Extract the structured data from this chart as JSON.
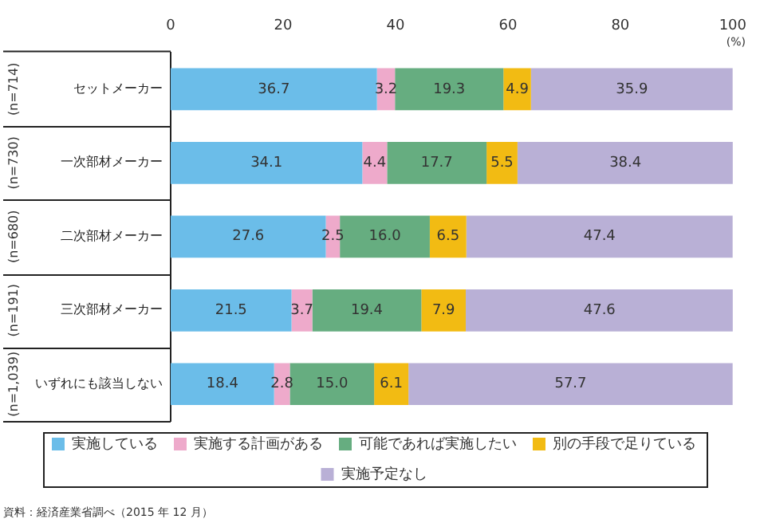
{
  "chart_data": {
    "type": "bar",
    "orientation": "horizontal",
    "stacked": true,
    "grid": false,
    "legend": "bottom",
    "xlabel": "(%)",
    "categories": [
      "セットメーカー",
      "一次部材メーカー",
      "二次部材メーカー",
      "三次部材メーカー",
      "いずれにも該当しない"
    ],
    "xlim": [
      0,
      100
    ],
    "xticks": [
      0,
      20,
      40,
      60,
      80,
      100
    ],
    "series": [
      {
        "name": "実施している",
        "color": "#6bbde9",
        "values": [
          36.7,
          34.1,
          27.6,
          21.5,
          18.4
        ],
        "value_labels": [
          "36.7",
          "34.1",
          "27.6",
          "21.5",
          "18.4"
        ]
      },
      {
        "name": "実施する計画がある",
        "color": "#eeaacb",
        "values": [
          3.2,
          4.4,
          2.5,
          3.7,
          2.8
        ],
        "value_labels": [
          "3.2",
          "4.4",
          "2.5",
          "3.7",
          "2.8"
        ]
      },
      {
        "name": "可能であれば実施したい",
        "color": "#66ad80",
        "values": [
          19.3,
          17.7,
          16.0,
          19.4,
          15.0
        ],
        "value_labels": [
          "19.3",
          "17.7",
          "16.0",
          "19.4",
          "15.0"
        ]
      },
      {
        "name": "別の手段で足りている",
        "color": "#f2bb13",
        "values": [
          4.9,
          5.5,
          6.5,
          7.9,
          6.1
        ],
        "value_labels": [
          "4.9",
          "5.5",
          "6.5",
          "7.9",
          "6.1"
        ]
      },
      {
        "name": "実施予定なし",
        "color": "#b9b0d6",
        "values": [
          35.9,
          38.4,
          47.4,
          47.6,
          57.7
        ],
        "value_labels": [
          "35.9",
          "38.4",
          "47.4",
          "47.6",
          "57.7"
        ]
      }
    ],
    "annotations": [
      "(n=714)",
      "(n=730)",
      "(n=680)",
      "(n=191)",
      "(n=1,039)",
      "資料：経済産業省調べ（2015 年 12 月）"
    ]
  }
}
